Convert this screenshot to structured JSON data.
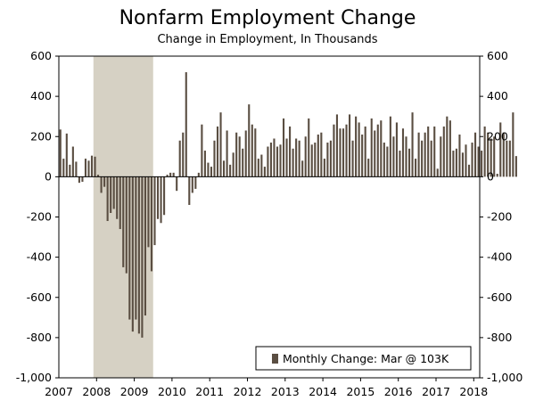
{
  "chart_data": {
    "type": "bar",
    "title": "Nonfarm Employment Change",
    "subtitle": "Change in Employment, In Thousands",
    "xlabel": "",
    "ylabel": "",
    "ylim": [
      -1000,
      600
    ],
    "yticks": [
      600,
      400,
      200,
      0,
      -200,
      -400,
      -600,
      -800,
      -1000
    ],
    "ytick_labels": [
      "600",
      "400",
      "200",
      "0",
      "-200",
      "-400",
      "-600",
      "-800",
      "-1,000"
    ],
    "xtick_labels": [
      "2007",
      "2008",
      "2009",
      "2010",
      "2011",
      "2012",
      "2013",
      "2014",
      "2015",
      "2016",
      "2017",
      "2018"
    ],
    "start": "2007-01",
    "recession": {
      "start": "2007-12",
      "end": "2009-06"
    },
    "bar_color": "#5a4e42",
    "recession_color": "#d6d1c4",
    "legend": "Monthly Change: Mar @ 103K",
    "series": [
      {
        "name": "Monthly Change",
        "values": [
          235,
          90,
          215,
          60,
          150,
          75,
          -30,
          -25,
          90,
          80,
          105,
          100,
          10,
          -80,
          -50,
          -220,
          -180,
          -160,
          -210,
          -260,
          -450,
          -480,
          -710,
          -770,
          -710,
          -780,
          -800,
          -690,
          -350,
          -470,
          -340,
          -210,
          -230,
          -190,
          10,
          20,
          20,
          -70,
          180,
          220,
          520,
          -140,
          -80,
          -60,
          20,
          260,
          130,
          70,
          50,
          180,
          250,
          320,
          80,
          230,
          60,
          120,
          220,
          200,
          140,
          230,
          360,
          260,
          240,
          90,
          110,
          50,
          150,
          170,
          190,
          150,
          160,
          290,
          190,
          250,
          140,
          190,
          180,
          80,
          200,
          290,
          160,
          170,
          210,
          220,
          90,
          170,
          180,
          260,
          310,
          240,
          240,
          260,
          310,
          180,
          300,
          270,
          210,
          250,
          90,
          290,
          230,
          260,
          280,
          170,
          150,
          300,
          200,
          270,
          130,
          240,
          200,
          140,
          320,
          90,
          220,
          180,
          220,
          250,
          180,
          250,
          40,
          200,
          250,
          300,
          280,
          130,
          140,
          210,
          120,
          160,
          60,
          170,
          220,
          150,
          130,
          250,
          220,
          190,
          200,
          15,
          270,
          220,
          180,
          180,
          320,
          103
        ]
      }
    ]
  }
}
